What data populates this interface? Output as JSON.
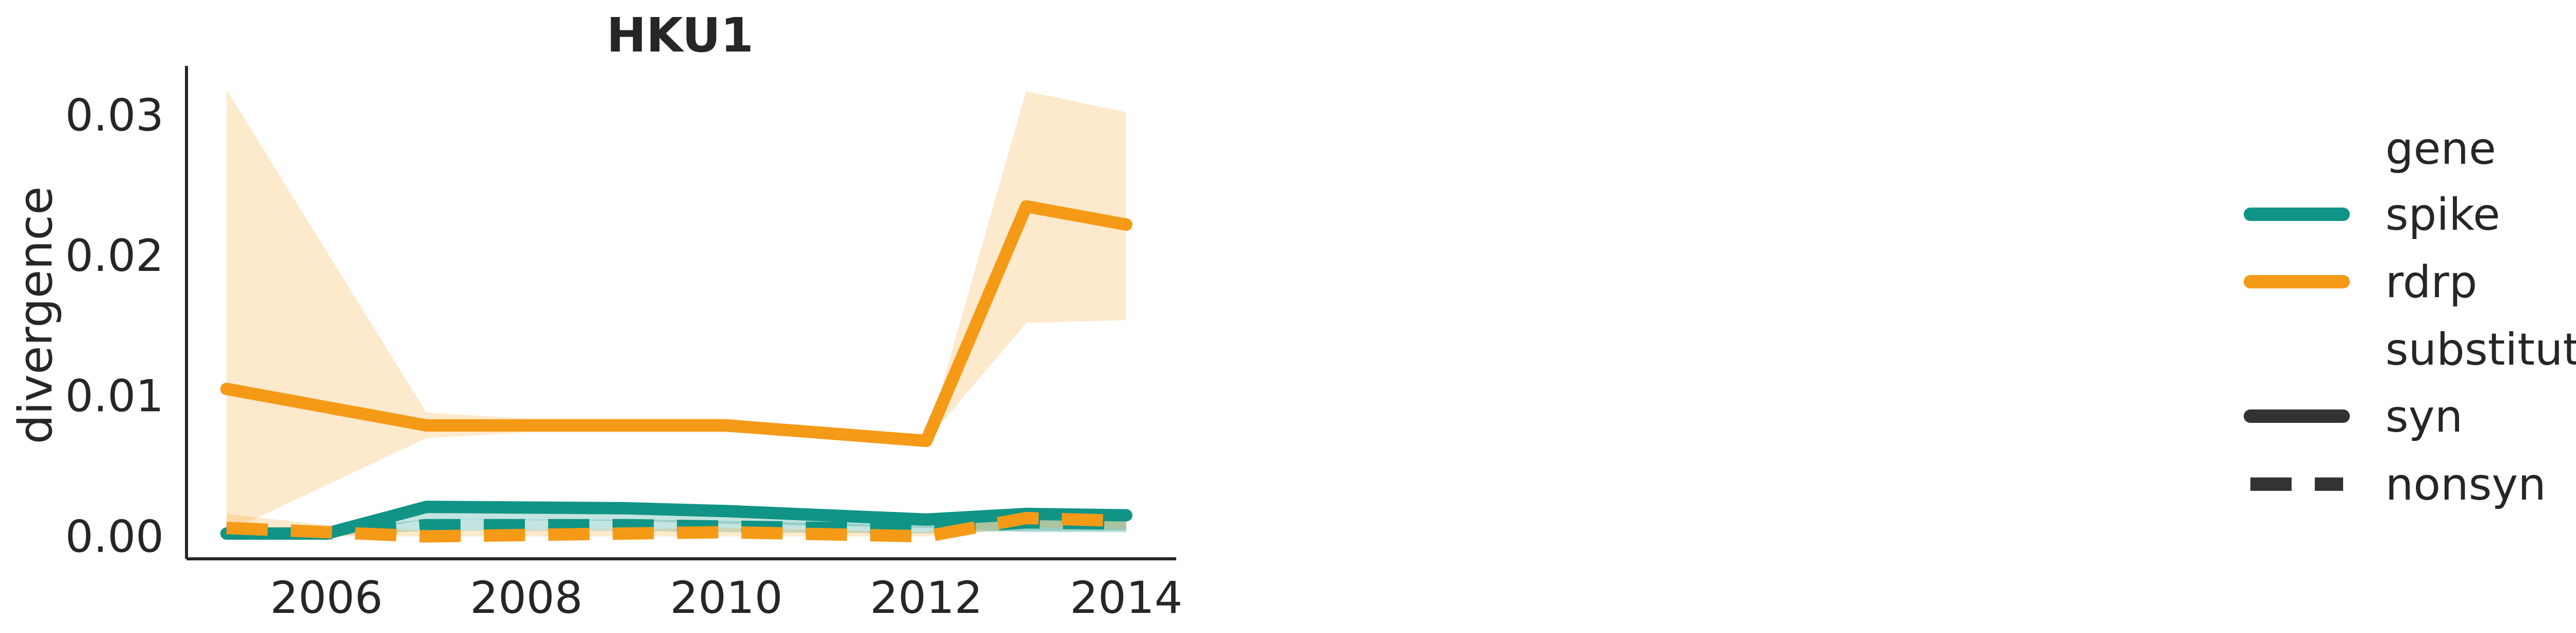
{
  "chart_data": {
    "type": "line",
    "title": "HKU1",
    "xlabel": "",
    "ylabel": "divergence",
    "xlim": [
      2004.6,
      2014.5
    ],
    "ylim": [
      -0.0016,
      0.0335
    ],
    "xticks": [
      2006,
      2008,
      2010,
      2012,
      2014
    ],
    "yticks": [
      0.0,
      0.01,
      0.02,
      0.03
    ],
    "ytick_labels": [
      "0.00",
      "0.01",
      "0.02",
      "0.03"
    ],
    "grid": false,
    "legend_placement": "right, outside plot",
    "legend": {
      "gene_title": "gene",
      "gene_items": [
        {
          "label": "spike",
          "color": "#109485"
        },
        {
          "label": "rdrp",
          "color": "#f59a17"
        }
      ],
      "substitution_title": "substitution",
      "substitution_items": [
        {
          "label": "syn",
          "style": "solid",
          "color": "#333333"
        },
        {
          "label": "nonsyn",
          "style": "dashed",
          "color": "#333333"
        }
      ]
    },
    "series": [
      {
        "gene": "rdrp",
        "substitution": "syn",
        "color": "#f59a17",
        "dash": "solid",
        "x": [
          2005,
          2007,
          2008,
          2009,
          2010,
          2012,
          2013,
          2014
        ],
        "y": [
          0.0105,
          0.0079,
          0.0079,
          0.0079,
          0.0079,
          0.0068,
          0.0235,
          0.0222
        ],
        "ci_lower": [
          0.0003,
          0.007,
          0.0074,
          0.0074,
          0.0074,
          0.0068,
          0.0152,
          0.0154
        ],
        "ci_upper": [
          0.0318,
          0.0088,
          0.0084,
          0.0084,
          0.0084,
          0.0068,
          0.0317,
          0.0302
        ]
      },
      {
        "gene": "spike",
        "substitution": "syn",
        "color": "#109485",
        "dash": "solid",
        "x": [
          2005,
          2006,
          2007,
          2009,
          2010,
          2012,
          2013,
          2014
        ],
        "y": [
          0.0002,
          0.0002,
          0.0021,
          0.002,
          0.0018,
          0.0012,
          0.0016,
          0.0015
        ],
        "ci_lower": [
          0.0,
          0.0,
          0.0012,
          0.0011,
          0.0009,
          0.0006,
          0.0003,
          0.0003
        ],
        "ci_upper": [
          0.0004,
          0.0004,
          0.0024,
          0.0024,
          0.0022,
          0.0016,
          0.0019,
          0.0019
        ]
      },
      {
        "gene": "spike",
        "substitution": "nonsyn",
        "color": "#109485",
        "dash": "dashed",
        "x": [
          2005,
          2006,
          2007,
          2009,
          2010,
          2012,
          2013,
          2014
        ],
        "y": [
          0.0003,
          0.0002,
          0.0008,
          0.0008,
          0.0007,
          0.0005,
          0.001,
          0.0009
        ],
        "ci_lower": [
          0.0,
          0.0,
          0.0004,
          0.0004,
          0.0003,
          0.0002,
          0.0004,
          0.0004
        ],
        "ci_upper": [
          0.0006,
          0.0005,
          0.0012,
          0.0012,
          0.0011,
          0.0008,
          0.0014,
          0.0013
        ]
      },
      {
        "gene": "rdrp",
        "substitution": "nonsyn",
        "color": "#f59a17",
        "dash": "dashed",
        "x": [
          2005,
          2006,
          2007,
          2009,
          2010,
          2012,
          2013,
          2014
        ],
        "y": [
          0.0006,
          0.0003,
          0.0,
          0.0002,
          0.0003,
          0.0,
          0.0013,
          0.0011
        ],
        "ci_lower": [
          0.0,
          0.0,
          0.0,
          0.0,
          0.0,
          0.0,
          0.0006,
          0.0005
        ],
        "ci_upper": [
          0.0016,
          0.0008,
          0.0004,
          0.0005,
          0.0006,
          0.0003,
          0.0018,
          0.0017
        ]
      }
    ]
  }
}
